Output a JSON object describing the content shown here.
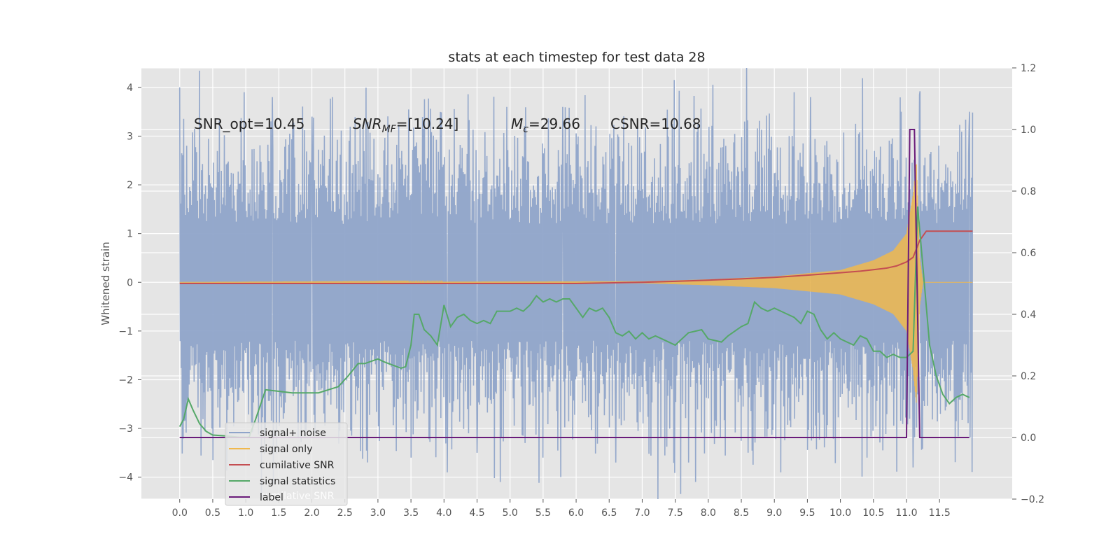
{
  "chart_data": {
    "type": "line",
    "title": "stats at each timestep for test data 28",
    "ylabel": "Whitened strain",
    "xlabel": "",
    "xlim": [
      -0.58,
      12.6
    ],
    "ylim": [
      -4.45,
      4.4
    ],
    "y2lim": [
      -0.2,
      1.2
    ],
    "x_ticks": [
      "0.0",
      "0.5",
      "1.0",
      "1.5",
      "2.0",
      "2.5",
      "3.0",
      "3.5",
      "4.0",
      "4.5",
      "5.0",
      "5.5",
      "6.0",
      "6.5",
      "7.0",
      "7.5",
      "8.0",
      "8.5",
      "9.0",
      "9.5",
      "10.0",
      "10.5",
      "11.0",
      "11.5"
    ],
    "y_ticks": [
      "4",
      "3",
      "2",
      "1",
      "0",
      "−1",
      "−2",
      "−3",
      "−4"
    ],
    "y2_ticks": [
      "1.2",
      "1.0",
      "0.8",
      "0.6",
      "0.4",
      "0.2",
      "0.0",
      "−0.2"
    ],
    "grid": true,
    "legend_position": "lower-left",
    "annotations": {
      "snr_opt": "SNR_opt=10.45",
      "snr_mf_base": "SNR",
      "snr_mf_sub": "MF",
      "snr_mf_rest": "=[10.24]",
      "mc_base": "M",
      "mc_sub": "c",
      "mc_rest": "=29.66",
      "csnr": "CSNR=10.68"
    },
    "noise_envelope": {
      "x_range": [
        0.0,
        12.0
      ],
      "typical_upper": 2.0,
      "typical_lower": -2.0,
      "peaks_upper": [
        [
          0.0,
          4.0
        ],
        [
          1.4,
          3.8
        ],
        [
          2.0,
          3.4
        ],
        [
          4.95,
          3.6
        ],
        [
          5.8,
          3.6
        ],
        [
          6.3,
          3.2
        ],
        [
          9.3,
          3.9
        ],
        [
          9.55,
          3.8
        ],
        [
          11.2,
          3.85
        ],
        [
          11.95,
          3.2
        ]
      ],
      "peaks_lower": [
        [
          1.3,
          -3.1
        ],
        [
          3.5,
          -3.6
        ],
        [
          4.05,
          -3.9
        ],
        [
          4.5,
          -3.5
        ],
        [
          4.85,
          -4.1
        ],
        [
          5.5,
          -3.6
        ],
        [
          6.6,
          -3.7
        ],
        [
          7.7,
          -3.7
        ],
        [
          9.1,
          -3.9
        ],
        [
          10.4,
          -3.6
        ],
        [
          11.1,
          -3.8
        ]
      ]
    },
    "series": [
      {
        "name": "signal+ noise",
        "axis": "left",
        "color": "#8fa4c9"
      },
      {
        "name": "signal only",
        "axis": "left",
        "color": "#f0b84d",
        "envelope": [
          [
            0.0,
            0.0
          ],
          [
            7.0,
            0.02
          ],
          [
            8.0,
            0.06
          ],
          [
            9.0,
            0.12
          ],
          [
            10.0,
            0.25
          ],
          [
            10.5,
            0.45
          ],
          [
            10.8,
            0.65
          ],
          [
            11.0,
            1.0
          ],
          [
            11.1,
            1.8
          ],
          [
            11.15,
            2.5
          ],
          [
            11.2,
            0.5
          ],
          [
            11.25,
            0.0
          ],
          [
            12.0,
            0.0
          ]
        ]
      },
      {
        "name": "cumilative SNR",
        "axis": "right",
        "color": "#c44e52",
        "x": [
          0.0,
          1.0,
          2.0,
          3.0,
          4.0,
          5.0,
          5.5,
          6.0,
          6.5,
          7.0,
          7.5,
          8.0,
          8.5,
          9.0,
          9.5,
          10.0,
          10.3,
          10.5,
          10.7,
          10.85,
          11.0,
          11.1,
          11.2,
          11.3,
          12.0
        ],
        "y": [
          0.5,
          0.5,
          0.5,
          0.5,
          0.5,
          0.5,
          0.5,
          0.5,
          0.502,
          0.504,
          0.507,
          0.511,
          0.515,
          0.52,
          0.527,
          0.535,
          0.54,
          0.545,
          0.55,
          0.557,
          0.57,
          0.585,
          0.64,
          0.67,
          0.67
        ]
      },
      {
        "name": "signal statistics",
        "axis": "right",
        "color": "#55a868",
        "x": [
          0.0,
          0.06,
          0.13,
          0.2,
          0.3,
          0.4,
          0.5,
          0.7,
          0.9,
          1.05,
          1.15,
          1.3,
          1.5,
          1.7,
          1.9,
          2.1,
          2.4,
          2.55,
          2.7,
          2.8,
          3.0,
          3.1,
          3.35,
          3.42,
          3.5,
          3.55,
          3.62,
          3.7,
          3.8,
          3.9,
          4.0,
          4.1,
          4.2,
          4.3,
          4.4,
          4.5,
          4.6,
          4.7,
          4.8,
          4.9,
          5.0,
          5.1,
          5.2,
          5.3,
          5.4,
          5.5,
          5.6,
          5.7,
          5.8,
          5.9,
          6.0,
          6.1,
          6.2,
          6.3,
          6.4,
          6.5,
          6.6,
          6.7,
          6.8,
          6.9,
          7.0,
          7.1,
          7.2,
          7.3,
          7.5,
          7.6,
          7.7,
          7.9,
          8.0,
          8.2,
          8.3,
          8.5,
          8.6,
          8.7,
          8.8,
          8.9,
          9.0,
          9.1,
          9.2,
          9.3,
          9.4,
          9.5,
          9.6,
          9.7,
          9.8,
          9.9,
          10.0,
          10.1,
          10.2,
          10.3,
          10.4,
          10.5,
          10.6,
          10.7,
          10.8,
          10.9,
          11.0,
          11.1,
          11.17,
          11.25,
          11.35,
          11.45,
          11.55,
          11.65,
          11.75,
          11.85,
          11.95
        ],
        "y": [
          0.035,
          0.06,
          0.125,
          0.09,
          0.045,
          0.02,
          0.008,
          0.005,
          0.001,
          0.001,
          0.06,
          0.155,
          0.15,
          0.145,
          0.145,
          0.145,
          0.165,
          0.2,
          0.24,
          0.24,
          0.255,
          0.245,
          0.225,
          0.23,
          0.3,
          0.4,
          0.4,
          0.35,
          0.33,
          0.3,
          0.43,
          0.36,
          0.39,
          0.4,
          0.38,
          0.37,
          0.38,
          0.37,
          0.41,
          0.41,
          0.41,
          0.42,
          0.41,
          0.43,
          0.46,
          0.44,
          0.45,
          0.44,
          0.45,
          0.45,
          0.42,
          0.39,
          0.42,
          0.41,
          0.42,
          0.39,
          0.34,
          0.33,
          0.345,
          0.32,
          0.34,
          0.32,
          0.33,
          0.32,
          0.3,
          0.32,
          0.34,
          0.35,
          0.32,
          0.31,
          0.33,
          0.36,
          0.37,
          0.44,
          0.42,
          0.41,
          0.42,
          0.41,
          0.4,
          0.39,
          0.37,
          0.41,
          0.4,
          0.35,
          0.32,
          0.34,
          0.32,
          0.31,
          0.3,
          0.33,
          0.32,
          0.28,
          0.28,
          0.26,
          0.27,
          0.26,
          0.26,
          0.28,
          0.75,
          0.55,
          0.3,
          0.2,
          0.14,
          0.11,
          0.13,
          0.14,
          0.13
        ]
      },
      {
        "name": "label",
        "axis": "right",
        "color": "#6a1b7a",
        "x": [
          0.0,
          11.0,
          11.05,
          11.12,
          11.2,
          11.95
        ],
        "y": [
          0.0,
          0.0,
          1.0,
          1.0,
          0.0,
          0.0
        ]
      }
    ],
    "legend_ghost_text": "cumilative SNR"
  }
}
